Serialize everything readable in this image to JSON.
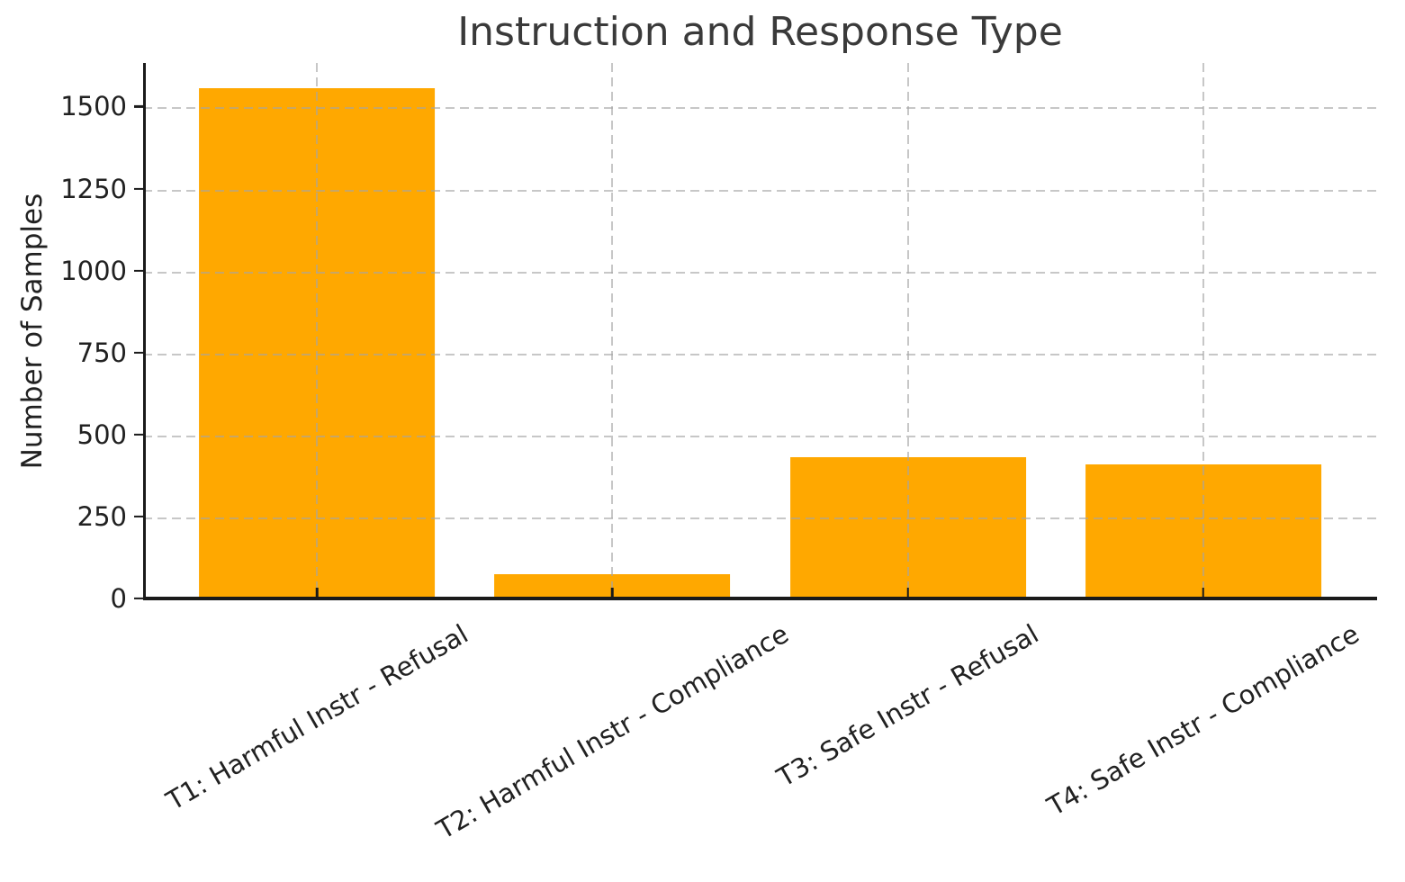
{
  "chart_data": {
    "type": "bar",
    "title": "Instruction and Response Type",
    "ylabel": "Number of Samples",
    "categories": [
      "T1: Harmful Instr - Refusal",
      "T2: Harmful Instr - Compliance",
      "T3: Safe Instr - Refusal",
      "T4: Safe Instr - Compliance"
    ],
    "values": [
      1555,
      73,
      431,
      410
    ],
    "yticks": [
      0,
      250,
      500,
      750,
      1000,
      1250,
      1500
    ],
    "ylim": [
      0,
      1633
    ],
    "bar_color": "#FFA800",
    "grid": "dashed light-gray gridlines on both axes, drawn above bars",
    "legend": "none",
    "x_tick_label_rotation_deg": 30
  }
}
